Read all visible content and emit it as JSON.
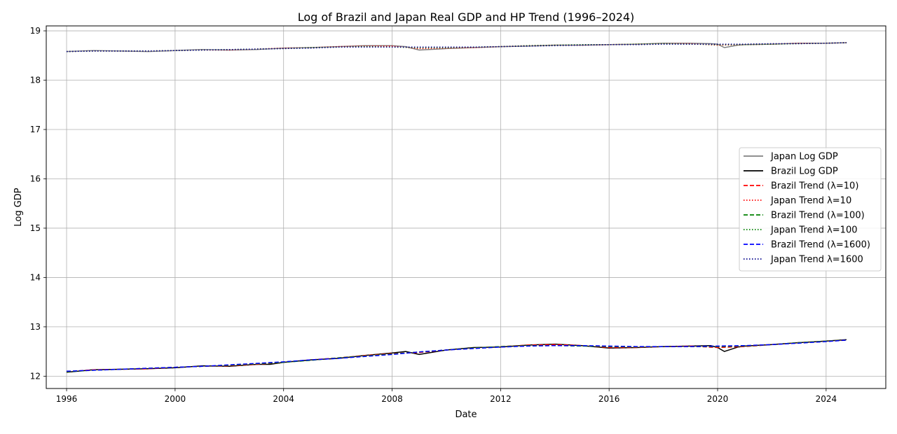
{
  "chart_data": {
    "type": "line",
    "title": "Log of Brazil and Japan Real GDP and HP Trend (1996–2024)",
    "xlabel": "Date",
    "ylabel": "Log GDP",
    "xlim": [
      1995.25,
      2026.2
    ],
    "ylim": [
      11.75,
      19.1
    ],
    "xticks": [
      1996,
      2000,
      2004,
      2008,
      2012,
      2016,
      2020,
      2024
    ],
    "yticks": [
      12,
      13,
      14,
      15,
      16,
      17,
      18,
      19
    ],
    "grid": true,
    "legend_position": "center-right",
    "series": [
      {
        "name": "Japan Log GDP",
        "color": "#808080",
        "style": "solid",
        "points": [
          [
            1996.0,
            18.58
          ],
          [
            1997.0,
            18.6
          ],
          [
            1998.0,
            18.59
          ],
          [
            1999.0,
            18.58
          ],
          [
            2000.0,
            18.6
          ],
          [
            2001.0,
            18.62
          ],
          [
            2002.0,
            18.61
          ],
          [
            2003.0,
            18.62
          ],
          [
            2004.0,
            18.65
          ],
          [
            2005.0,
            18.66
          ],
          [
            2006.0,
            18.68
          ],
          [
            2007.0,
            18.7
          ],
          [
            2008.0,
            18.7
          ],
          [
            2008.5,
            18.68
          ],
          [
            2009.0,
            18.61
          ],
          [
            2010.0,
            18.64
          ],
          [
            2011.0,
            18.66
          ],
          [
            2012.0,
            18.68
          ],
          [
            2013.0,
            18.69
          ],
          [
            2014.0,
            18.71
          ],
          [
            2015.0,
            18.71
          ],
          [
            2016.0,
            18.72
          ],
          [
            2017.0,
            18.73
          ],
          [
            2018.0,
            18.75
          ],
          [
            2019.0,
            18.75
          ],
          [
            2019.75,
            18.74
          ],
          [
            2020.0,
            18.73
          ],
          [
            2020.25,
            18.66
          ],
          [
            2020.75,
            18.71
          ],
          [
            2021.0,
            18.72
          ],
          [
            2022.0,
            18.73
          ],
          [
            2023.0,
            18.75
          ],
          [
            2024.0,
            18.75
          ],
          [
            2024.75,
            18.76
          ]
        ]
      },
      {
        "name": "Brazil Log GDP",
        "color": "#000000",
        "style": "solid",
        "points": [
          [
            1996.0,
            12.08
          ],
          [
            1997.0,
            12.13
          ],
          [
            1998.0,
            12.14
          ],
          [
            1999.0,
            12.15
          ],
          [
            2000.0,
            12.17
          ],
          [
            2001.0,
            12.21
          ],
          [
            2002.0,
            12.2
          ],
          [
            2003.0,
            12.24
          ],
          [
            2003.5,
            12.24
          ],
          [
            2004.0,
            12.28
          ],
          [
            2005.0,
            12.33
          ],
          [
            2006.0,
            12.36
          ],
          [
            2007.0,
            12.42
          ],
          [
            2008.0,
            12.47
          ],
          [
            2008.5,
            12.5
          ],
          [
            2009.0,
            12.44
          ],
          [
            2010.0,
            12.53
          ],
          [
            2011.0,
            12.58
          ],
          [
            2012.0,
            12.59
          ],
          [
            2013.0,
            12.63
          ],
          [
            2014.0,
            12.65
          ],
          [
            2015.0,
            12.62
          ],
          [
            2016.0,
            12.57
          ],
          [
            2017.0,
            12.58
          ],
          [
            2018.0,
            12.6
          ],
          [
            2019.0,
            12.61
          ],
          [
            2019.75,
            12.62
          ],
          [
            2020.0,
            12.58
          ],
          [
            2020.25,
            12.5
          ],
          [
            2020.75,
            12.59
          ],
          [
            2021.0,
            12.61
          ],
          [
            2022.0,
            12.64
          ],
          [
            2023.0,
            12.68
          ],
          [
            2024.0,
            12.71
          ],
          [
            2024.75,
            12.74
          ]
        ]
      },
      {
        "name": "Brazil Trend (λ=10)",
        "color": "#ff0000",
        "style": "dashed",
        "points": [
          [
            1996.0,
            12.09
          ],
          [
            1997.0,
            12.13
          ],
          [
            1998.0,
            12.14
          ],
          [
            1999.0,
            12.15
          ],
          [
            2000.0,
            12.18
          ],
          [
            2001.0,
            12.2
          ],
          [
            2002.0,
            12.21
          ],
          [
            2003.0,
            12.24
          ],
          [
            2004.0,
            12.28
          ],
          [
            2005.0,
            12.33
          ],
          [
            2006.0,
            12.37
          ],
          [
            2007.0,
            12.42
          ],
          [
            2008.0,
            12.46
          ],
          [
            2009.0,
            12.48
          ],
          [
            2010.0,
            12.53
          ],
          [
            2011.0,
            12.57
          ],
          [
            2012.0,
            12.6
          ],
          [
            2013.0,
            12.63
          ],
          [
            2014.0,
            12.64
          ],
          [
            2015.0,
            12.62
          ],
          [
            2016.0,
            12.58
          ],
          [
            2017.0,
            12.58
          ],
          [
            2018.0,
            12.6
          ],
          [
            2019.0,
            12.61
          ],
          [
            2020.0,
            12.58
          ],
          [
            2021.0,
            12.6
          ],
          [
            2022.0,
            12.64
          ],
          [
            2023.0,
            12.68
          ],
          [
            2024.0,
            12.71
          ],
          [
            2024.75,
            12.73
          ]
        ]
      },
      {
        "name": "Japan Trend λ=10",
        "color": "#ff0000",
        "style": "dotted",
        "points": [
          [
            1996.0,
            18.58
          ],
          [
            1997.0,
            18.59
          ],
          [
            1998.0,
            18.59
          ],
          [
            1999.0,
            18.59
          ],
          [
            2000.0,
            18.6
          ],
          [
            2001.0,
            18.61
          ],
          [
            2002.0,
            18.61
          ],
          [
            2003.0,
            18.63
          ],
          [
            2004.0,
            18.65
          ],
          [
            2005.0,
            18.66
          ],
          [
            2006.0,
            18.68
          ],
          [
            2007.0,
            18.69
          ],
          [
            2008.0,
            18.69
          ],
          [
            2009.0,
            18.64
          ],
          [
            2010.0,
            18.65
          ],
          [
            2011.0,
            18.66
          ],
          [
            2012.0,
            18.68
          ],
          [
            2013.0,
            18.7
          ],
          [
            2014.0,
            18.71
          ],
          [
            2015.0,
            18.71
          ],
          [
            2016.0,
            18.72
          ],
          [
            2017.0,
            18.73
          ],
          [
            2018.0,
            18.74
          ],
          [
            2019.0,
            18.74
          ],
          [
            2020.0,
            18.71
          ],
          [
            2021.0,
            18.72
          ],
          [
            2022.0,
            18.73
          ],
          [
            2023.0,
            18.75
          ],
          [
            2024.0,
            18.75
          ],
          [
            2024.75,
            18.76
          ]
        ]
      },
      {
        "name": "Brazil Trend (λ=100)",
        "color": "#008000",
        "style": "dashed",
        "points": [
          [
            1996.0,
            12.09
          ],
          [
            1997.0,
            12.12
          ],
          [
            1998.0,
            12.14
          ],
          [
            1999.0,
            12.16
          ],
          [
            2000.0,
            12.18
          ],
          [
            2001.0,
            12.2
          ],
          [
            2002.0,
            12.22
          ],
          [
            2003.0,
            12.25
          ],
          [
            2004.0,
            12.28
          ],
          [
            2005.0,
            12.32
          ],
          [
            2006.0,
            12.37
          ],
          [
            2007.0,
            12.41
          ],
          [
            2008.0,
            12.45
          ],
          [
            2009.0,
            12.49
          ],
          [
            2010.0,
            12.53
          ],
          [
            2011.0,
            12.57
          ],
          [
            2012.0,
            12.6
          ],
          [
            2013.0,
            12.62
          ],
          [
            2014.0,
            12.62
          ],
          [
            2015.0,
            12.61
          ],
          [
            2016.0,
            12.6
          ],
          [
            2017.0,
            12.59
          ],
          [
            2018.0,
            12.6
          ],
          [
            2019.0,
            12.6
          ],
          [
            2020.0,
            12.6
          ],
          [
            2021.0,
            12.61
          ],
          [
            2022.0,
            12.64
          ],
          [
            2023.0,
            12.68
          ],
          [
            2024.0,
            12.71
          ],
          [
            2024.75,
            12.73
          ]
        ]
      },
      {
        "name": "Japan Trend λ=100",
        "color": "#008000",
        "style": "dotted",
        "points": [
          [
            1996.0,
            18.58
          ],
          [
            1997.0,
            18.59
          ],
          [
            1998.0,
            18.59
          ],
          [
            1999.0,
            18.59
          ],
          [
            2000.0,
            18.6
          ],
          [
            2001.0,
            18.61
          ],
          [
            2002.0,
            18.62
          ],
          [
            2003.0,
            18.63
          ],
          [
            2004.0,
            18.64
          ],
          [
            2005.0,
            18.66
          ],
          [
            2006.0,
            18.67
          ],
          [
            2007.0,
            18.68
          ],
          [
            2008.0,
            18.67
          ],
          [
            2009.0,
            18.66
          ],
          [
            2010.0,
            18.66
          ],
          [
            2011.0,
            18.67
          ],
          [
            2012.0,
            18.68
          ],
          [
            2013.0,
            18.7
          ],
          [
            2014.0,
            18.71
          ],
          [
            2015.0,
            18.72
          ],
          [
            2016.0,
            18.72
          ],
          [
            2017.0,
            18.73
          ],
          [
            2018.0,
            18.74
          ],
          [
            2019.0,
            18.73
          ],
          [
            2020.0,
            18.72
          ],
          [
            2021.0,
            18.72
          ],
          [
            2022.0,
            18.73
          ],
          [
            2023.0,
            18.74
          ],
          [
            2024.0,
            18.75
          ],
          [
            2024.75,
            18.76
          ]
        ]
      },
      {
        "name": "Brazil Trend (λ=1600)",
        "color": "#0000ff",
        "style": "dashed",
        "points": [
          [
            1996.0,
            12.1
          ],
          [
            1997.0,
            12.12
          ],
          [
            1998.0,
            12.14
          ],
          [
            1999.0,
            12.16
          ],
          [
            2000.0,
            12.18
          ],
          [
            2001.0,
            12.2
          ],
          [
            2002.0,
            12.23
          ],
          [
            2003.0,
            12.26
          ],
          [
            2004.0,
            12.29
          ],
          [
            2005.0,
            12.33
          ],
          [
            2006.0,
            12.36
          ],
          [
            2007.0,
            12.4
          ],
          [
            2008.0,
            12.44
          ],
          [
            2009.0,
            12.49
          ],
          [
            2010.0,
            12.53
          ],
          [
            2011.0,
            12.56
          ],
          [
            2012.0,
            12.59
          ],
          [
            2013.0,
            12.61
          ],
          [
            2014.0,
            12.62
          ],
          [
            2015.0,
            12.62
          ],
          [
            2016.0,
            12.61
          ],
          [
            2017.0,
            12.6
          ],
          [
            2018.0,
            12.6
          ],
          [
            2019.0,
            12.6
          ],
          [
            2020.0,
            12.61
          ],
          [
            2021.0,
            12.62
          ],
          [
            2022.0,
            12.64
          ],
          [
            2023.0,
            12.67
          ],
          [
            2024.0,
            12.7
          ],
          [
            2024.75,
            12.73
          ]
        ]
      },
      {
        "name": "Japan Trend λ=1600",
        "color": "#00008b",
        "style": "dotted",
        "points": [
          [
            1996.0,
            18.58
          ],
          [
            1997.0,
            18.59
          ],
          [
            1998.0,
            18.59
          ],
          [
            1999.0,
            18.59
          ],
          [
            2000.0,
            18.6
          ],
          [
            2001.0,
            18.61
          ],
          [
            2002.0,
            18.62
          ],
          [
            2003.0,
            18.63
          ],
          [
            2004.0,
            18.64
          ],
          [
            2005.0,
            18.65
          ],
          [
            2006.0,
            18.67
          ],
          [
            2007.0,
            18.67
          ],
          [
            2008.0,
            18.67
          ],
          [
            2009.0,
            18.67
          ],
          [
            2010.0,
            18.67
          ],
          [
            2011.0,
            18.67
          ],
          [
            2012.0,
            18.68
          ],
          [
            2013.0,
            18.69
          ],
          [
            2014.0,
            18.7
          ],
          [
            2015.0,
            18.71
          ],
          [
            2016.0,
            18.72
          ],
          [
            2017.0,
            18.72
          ],
          [
            2018.0,
            18.73
          ],
          [
            2019.0,
            18.73
          ],
          [
            2020.0,
            18.73
          ],
          [
            2021.0,
            18.73
          ],
          [
            2022.0,
            18.74
          ],
          [
            2023.0,
            18.74
          ],
          [
            2024.0,
            18.75
          ],
          [
            2024.75,
            18.76
          ]
        ]
      }
    ]
  }
}
